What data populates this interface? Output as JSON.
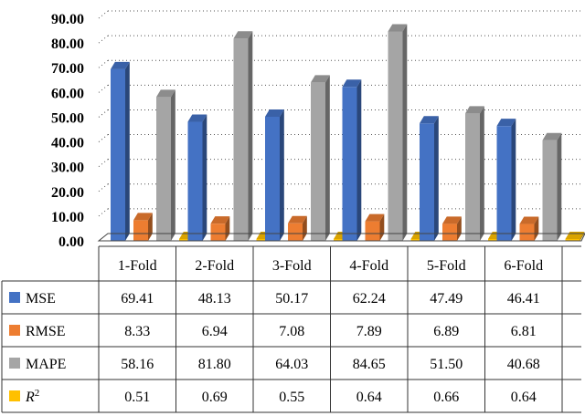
{
  "chart_data": {
    "type": "bar",
    "style": "3d-clustered-column-with-data-table",
    "categories": [
      "1-Fold",
      "2-Fold",
      "3-Fold",
      "4-Fold",
      "5-Fold",
      "6-Fold"
    ],
    "series": [
      {
        "name": "MSE",
        "color": "#4472C4",
        "values": [
          69.41,
          48.13,
          50.17,
          62.24,
          47.49,
          46.41
        ],
        "labels": [
          "69.41",
          "48.13",
          "50.17",
          "62.24",
          "47.49",
          "46.41"
        ]
      },
      {
        "name": "RMSE",
        "color": "#ED7D31",
        "values": [
          8.33,
          6.94,
          7.08,
          7.89,
          6.89,
          6.81
        ],
        "labels": [
          "8.33",
          "6.94",
          "7.08",
          "7.89",
          "6.89",
          "6.81"
        ]
      },
      {
        "name": "MAPE",
        "color": "#A5A5A5",
        "values": [
          58.16,
          81.8,
          64.03,
          84.65,
          51.5,
          40.68
        ],
        "labels": [
          "58.16",
          "81.80",
          "64.03",
          "84.65",
          "51.50",
          "40.68"
        ]
      },
      {
        "name": "R",
        "superscript": "2",
        "color": "#FFC000",
        "values": [
          0.51,
          0.69,
          0.55,
          0.64,
          0.66,
          0.64
        ],
        "labels": [
          "0.51",
          "0.69",
          "0.55",
          "0.64",
          "0.66",
          "0.64"
        ]
      }
    ],
    "yticks": [
      "0.00",
      "10.00",
      "20.00",
      "30.00",
      "40.00",
      "50.00",
      "60.00",
      "70.00",
      "80.00",
      "90.00"
    ],
    "ylim": [
      0,
      90
    ],
    "grid": "dotted-horizontal",
    "legend": "data-table-left",
    "title": "",
    "xlabel": "",
    "ylabel": ""
  }
}
